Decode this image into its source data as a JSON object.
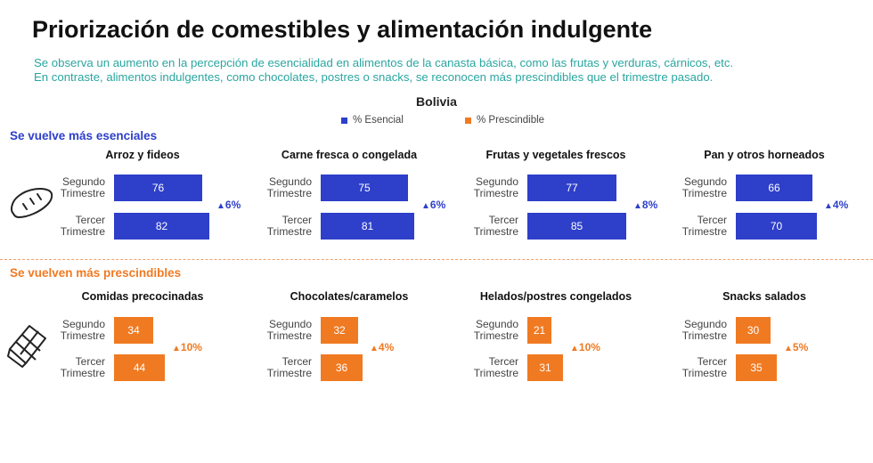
{
  "title": "Priorización de comestibles y alimentación indulgente",
  "subtitle_lines": [
    "Se observa un aumento en la percepción de esencialidad en alimentos de la canasta básica, como las frutas y verduras, cárnicos, etc.",
    "En contraste, alimentos indulgentes, como chocolates, postres o snacks, se reconocen más prescindibles que el trimestre pasado."
  ],
  "country": "Bolivia",
  "legend": [
    {
      "label": "% Esencial",
      "color": "#2e3fc9"
    },
    {
      "label": "% Prescindible",
      "color": "#f07a22"
    }
  ],
  "sections": [
    {
      "label": "Se vuelve más esenciales",
      "color": "#2e3fc9",
      "icon": "bread-icon"
    },
    {
      "label": "Se vuelven más prescindibles",
      "color": "#f07a22",
      "icon": "chocolate-bar-icon"
    }
  ],
  "row_labels": [
    [
      "Segundo",
      "Trimestre"
    ],
    [
      "Tercer",
      "Trimestre"
    ]
  ],
  "chart_data": [
    {
      "type": "bar",
      "title": "Arroz y fideos",
      "categories": [
        "Segundo Trimestre",
        "Tercer Trimestre"
      ],
      "values": [
        76,
        82
      ],
      "delta": "6%",
      "series": "% Esencial",
      "color": "#2e3fc9"
    },
    {
      "type": "bar",
      "title": "Carne fresca o congelada",
      "categories": [
        "Segundo Trimestre",
        "Tercer Trimestre"
      ],
      "values": [
        75,
        81
      ],
      "delta": "6%",
      "series": "% Esencial",
      "color": "#2e3fc9"
    },
    {
      "type": "bar",
      "title": "Frutas y vegetales frescos",
      "categories": [
        "Segundo Trimestre",
        "Tercer Trimestre"
      ],
      "values": [
        77,
        85
      ],
      "delta": "8%",
      "series": "% Esencial",
      "color": "#2e3fc9"
    },
    {
      "type": "bar",
      "title": "Pan y otros horneados",
      "categories": [
        "Segundo Trimestre",
        "Tercer Trimestre"
      ],
      "values": [
        66,
        70
      ],
      "delta": "4%",
      "series": "% Esencial",
      "color": "#2e3fc9"
    },
    {
      "type": "bar",
      "title": "Comidas precocinadas",
      "categories": [
        "Segundo Trimestre",
        "Tercer Trimestre"
      ],
      "values": [
        34,
        44
      ],
      "delta": "10%",
      "series": "% Prescindible",
      "color": "#f07a22"
    },
    {
      "type": "bar",
      "title": "Chocolates/caramelos",
      "categories": [
        "Segundo Trimestre",
        "Tercer Trimestre"
      ],
      "values": [
        32,
        36
      ],
      "delta": "4%",
      "series": "% Prescindible",
      "color": "#f07a22"
    },
    {
      "type": "bar",
      "title": "Helados/postres congelados",
      "categories": [
        "Segundo Trimestre",
        "Tercer Trimestre"
      ],
      "values": [
        21,
        31
      ],
      "delta": "10%",
      "series": "% Prescindible",
      "color": "#f07a22"
    },
    {
      "type": "bar",
      "title": "Snacks salados",
      "categories": [
        "Segundo Trimestre",
        "Tercer Trimestre"
      ],
      "values": [
        30,
        35
      ],
      "delta": "5%",
      "series": "% Prescindible",
      "color": "#f07a22"
    }
  ]
}
